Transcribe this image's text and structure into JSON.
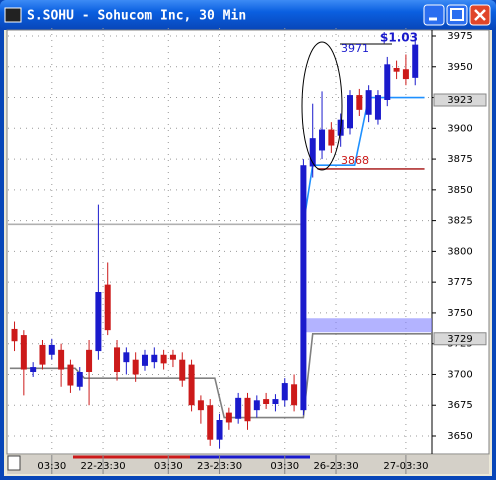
{
  "window": {
    "title": "S.SOHU - Sohucom Inc, 30 Min"
  },
  "chart_data": {
    "type": "candlestick",
    "up_color": "#1a1acc",
    "down_color": "#cc1a1a",
    "open": [
      3737,
      3732,
      3702,
      3724,
      3716,
      3720,
      3708,
      3690,
      3720,
      3719,
      3773,
      3722,
      3710,
      3712,
      3707,
      3710,
      3716,
      3716,
      3712,
      3708,
      3679,
      3675,
      3647,
      3669,
      3664,
      3681,
      3671,
      3680,
      3676,
      3679,
      3692,
      3671,
      3869,
      3882,
      3899,
      3894,
      3900,
      3927,
      3911,
      3907,
      3923,
      3949,
      3948,
      3941
    ],
    "high": [
      3743,
      3736,
      3710,
      3728,
      3729,
      3725,
      3712,
      3706,
      3728,
      3838,
      3791,
      3728,
      3722,
      3718,
      3720,
      3722,
      3720,
      3720,
      3718,
      3712,
      3683,
      3680,
      3668,
      3673,
      3685,
      3685,
      3683,
      3685,
      3684,
      3697,
      3700,
      3875,
      3920,
      3930,
      3905,
      3912,
      3931,
      3932,
      3935,
      3931,
      3958,
      3955,
      3960,
      3972
    ],
    "low": [
      3719,
      3683,
      3698,
      3704,
      3712,
      3690,
      3685,
      3687,
      3675,
      3712,
      3732,
      3695,
      3700,
      3694,
      3703,
      3705,
      3704,
      3706,
      3690,
      3670,
      3660,
      3642,
      3640,
      3655,
      3660,
      3655,
      3665,
      3672,
      3670,
      3674,
      3670,
      3667,
      3860,
      3875,
      3880,
      3885,
      3895,
      3910,
      3905,
      3903,
      3918,
      3940,
      3935,
      3935
    ],
    "close": [
      3727,
      3704,
      3706,
      3708,
      3724,
      3704,
      3691,
      3702,
      3702,
      3767,
      3736,
      3702,
      3718,
      3700,
      3716,
      3716,
      3709,
      3712,
      3695,
      3675,
      3671,
      3647,
      3663,
      3661,
      3681,
      3662,
      3679,
      3676,
      3680,
      3693,
      3675,
      3870,
      3892,
      3899,
      3886,
      3907,
      3927,
      3915,
      3931,
      3927,
      3952,
      3946,
      3940,
      3968
    ],
    "xlim": [
      -0.7,
      44.8
    ],
    "xticks": [
      {
        "value": 4,
        "label": "03:30"
      },
      {
        "value": 9.5,
        "label": "22-23:30"
      },
      {
        "value": 16.5,
        "label": "03:30"
      },
      {
        "value": 22,
        "label": "23-23:30"
      },
      {
        "value": 29,
        "label": "03:30"
      },
      {
        "value": 34.5,
        "label": "26-23:30"
      },
      {
        "value": 42,
        "label": "27-03:30"
      }
    ],
    "ylim": [
      3637,
      3981.5
    ],
    "yticks": [
      3650,
      3675,
      3700,
      3725,
      3750,
      3775,
      3800,
      3825,
      3850,
      3875,
      3900,
      3925,
      3950,
      3975
    ],
    "grid": true,
    "overlays": [
      {
        "color": "#b0b0b0",
        "style": "line",
        "x": [
          -0.7,
          31
        ],
        "values": [
          3822,
          3822
        ]
      },
      {
        "color": "#808080",
        "style": "line",
        "x": [
          -0.5,
          6.5,
          7.5,
          21.5,
          22.5,
          31,
          32,
          44.8
        ],
        "values": [
          3705,
          3705,
          3697,
          3697,
          3665,
          3665,
          3733,
          3733
        ]
      },
      {
        "color": "#1e90ff",
        "style": "line",
        "x": [
          31,
          32,
          36.5,
          38,
          44
        ],
        "values": [
          3822,
          3870,
          3870,
          3925,
          3925
        ]
      },
      {
        "color": "#b03030",
        "style": "line",
        "x": [
          32.5,
          44
        ],
        "values": [
          3867,
          3867
        ]
      },
      {
        "color": "#8080ff",
        "style": "band",
        "x": [
          31,
          44.8
        ],
        "values": [
          3740,
          3740
        ]
      }
    ],
    "price_markers": [
      3923,
      3729
    ],
    "annotations": [
      "3971",
      "3868",
      "$1.03"
    ]
  }
}
